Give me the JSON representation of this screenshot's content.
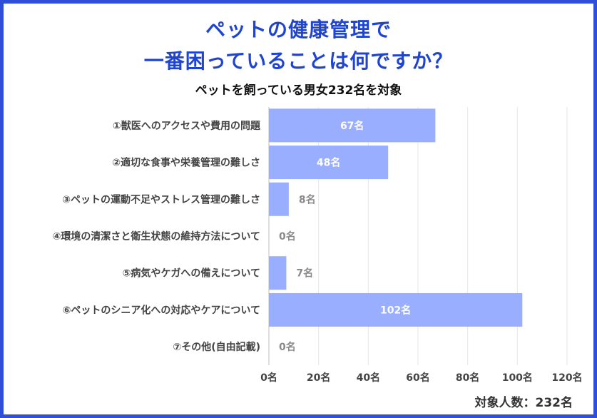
{
  "header": {
    "title_line1": "ペットの健康管理で",
    "title_line2": "一番困っていることは何ですか？",
    "subtitle": "ペットを飼っている男女232名を対象"
  },
  "footer": {
    "total": "対象人数：232名"
  },
  "colors": {
    "bar": "#9aaeff",
    "accent": "#1f44d1",
    "frame": "#2f4fd6"
  },
  "chart_data": {
    "type": "bar",
    "orientation": "horizontal",
    "categories": [
      "①獣医へのアクセスや費用の問題",
      "②適切な食事や栄養管理の難しさ",
      "③ペットの運動不足やストレス管理の難しさ",
      "④環境の清潔さと衛生状態の維持方法について",
      "⑤病気やケガへの備えについて",
      "⑥ペットのシニア化への対応やケアについて",
      "⑦その他(自由記載)"
    ],
    "values": [
      67,
      48,
      8,
      0,
      7,
      102,
      0
    ],
    "value_labels": [
      "67名",
      "48名",
      "8名",
      "0名",
      "7名",
      "102名",
      "0名"
    ],
    "xlim": [
      0,
      120
    ],
    "xticks": [
      0,
      20,
      40,
      60,
      80,
      100,
      120
    ],
    "xtick_labels": [
      "0名",
      "20名",
      "40名",
      "60名",
      "80名",
      "100名",
      "120名"
    ],
    "grid": true
  }
}
